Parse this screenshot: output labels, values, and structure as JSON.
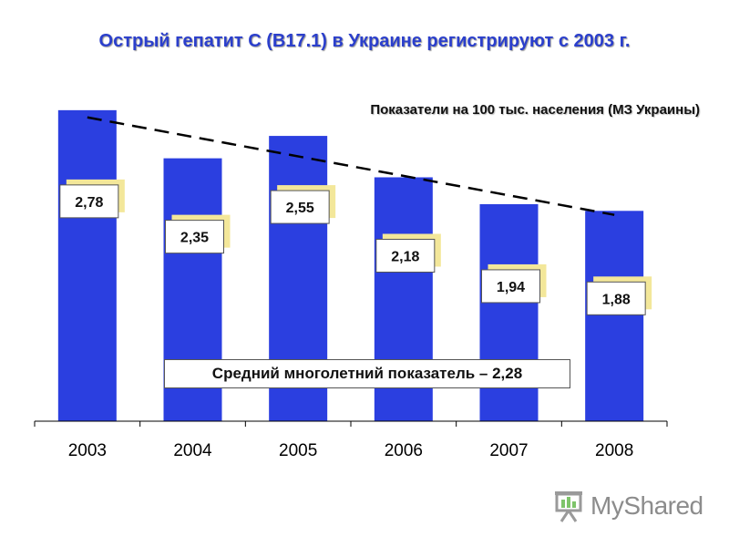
{
  "header": {
    "title": "Острый гепатит С (В17.1) в Украине регистрируют с 2003 г.",
    "subtitle": "Показатели на 100 тыс. населения (МЗ Украины)"
  },
  "annotation": {
    "mean_label": "Средний многолетний показатель – 2,28"
  },
  "watermark": {
    "text": "MyShared",
    "icon": "presentation-board-icon"
  },
  "colors": {
    "bar": "#2b3fe0",
    "label_shadow": "#f3e79a",
    "trend": "#000000",
    "title": "#2b3fcc"
  },
  "chart_data": {
    "type": "bar",
    "categories": [
      "2003",
      "2004",
      "2005",
      "2006",
      "2007",
      "2008"
    ],
    "values": [
      2.78,
      2.35,
      2.55,
      2.18,
      1.94,
      1.88
    ],
    "value_labels": [
      "2,78",
      "2,35",
      "2,55",
      "2,18",
      "1,94",
      "1,88"
    ],
    "ylim": [
      0,
      2.95
    ],
    "grid": false,
    "trendline": {
      "style": "dashed",
      "type": "linear"
    }
  }
}
